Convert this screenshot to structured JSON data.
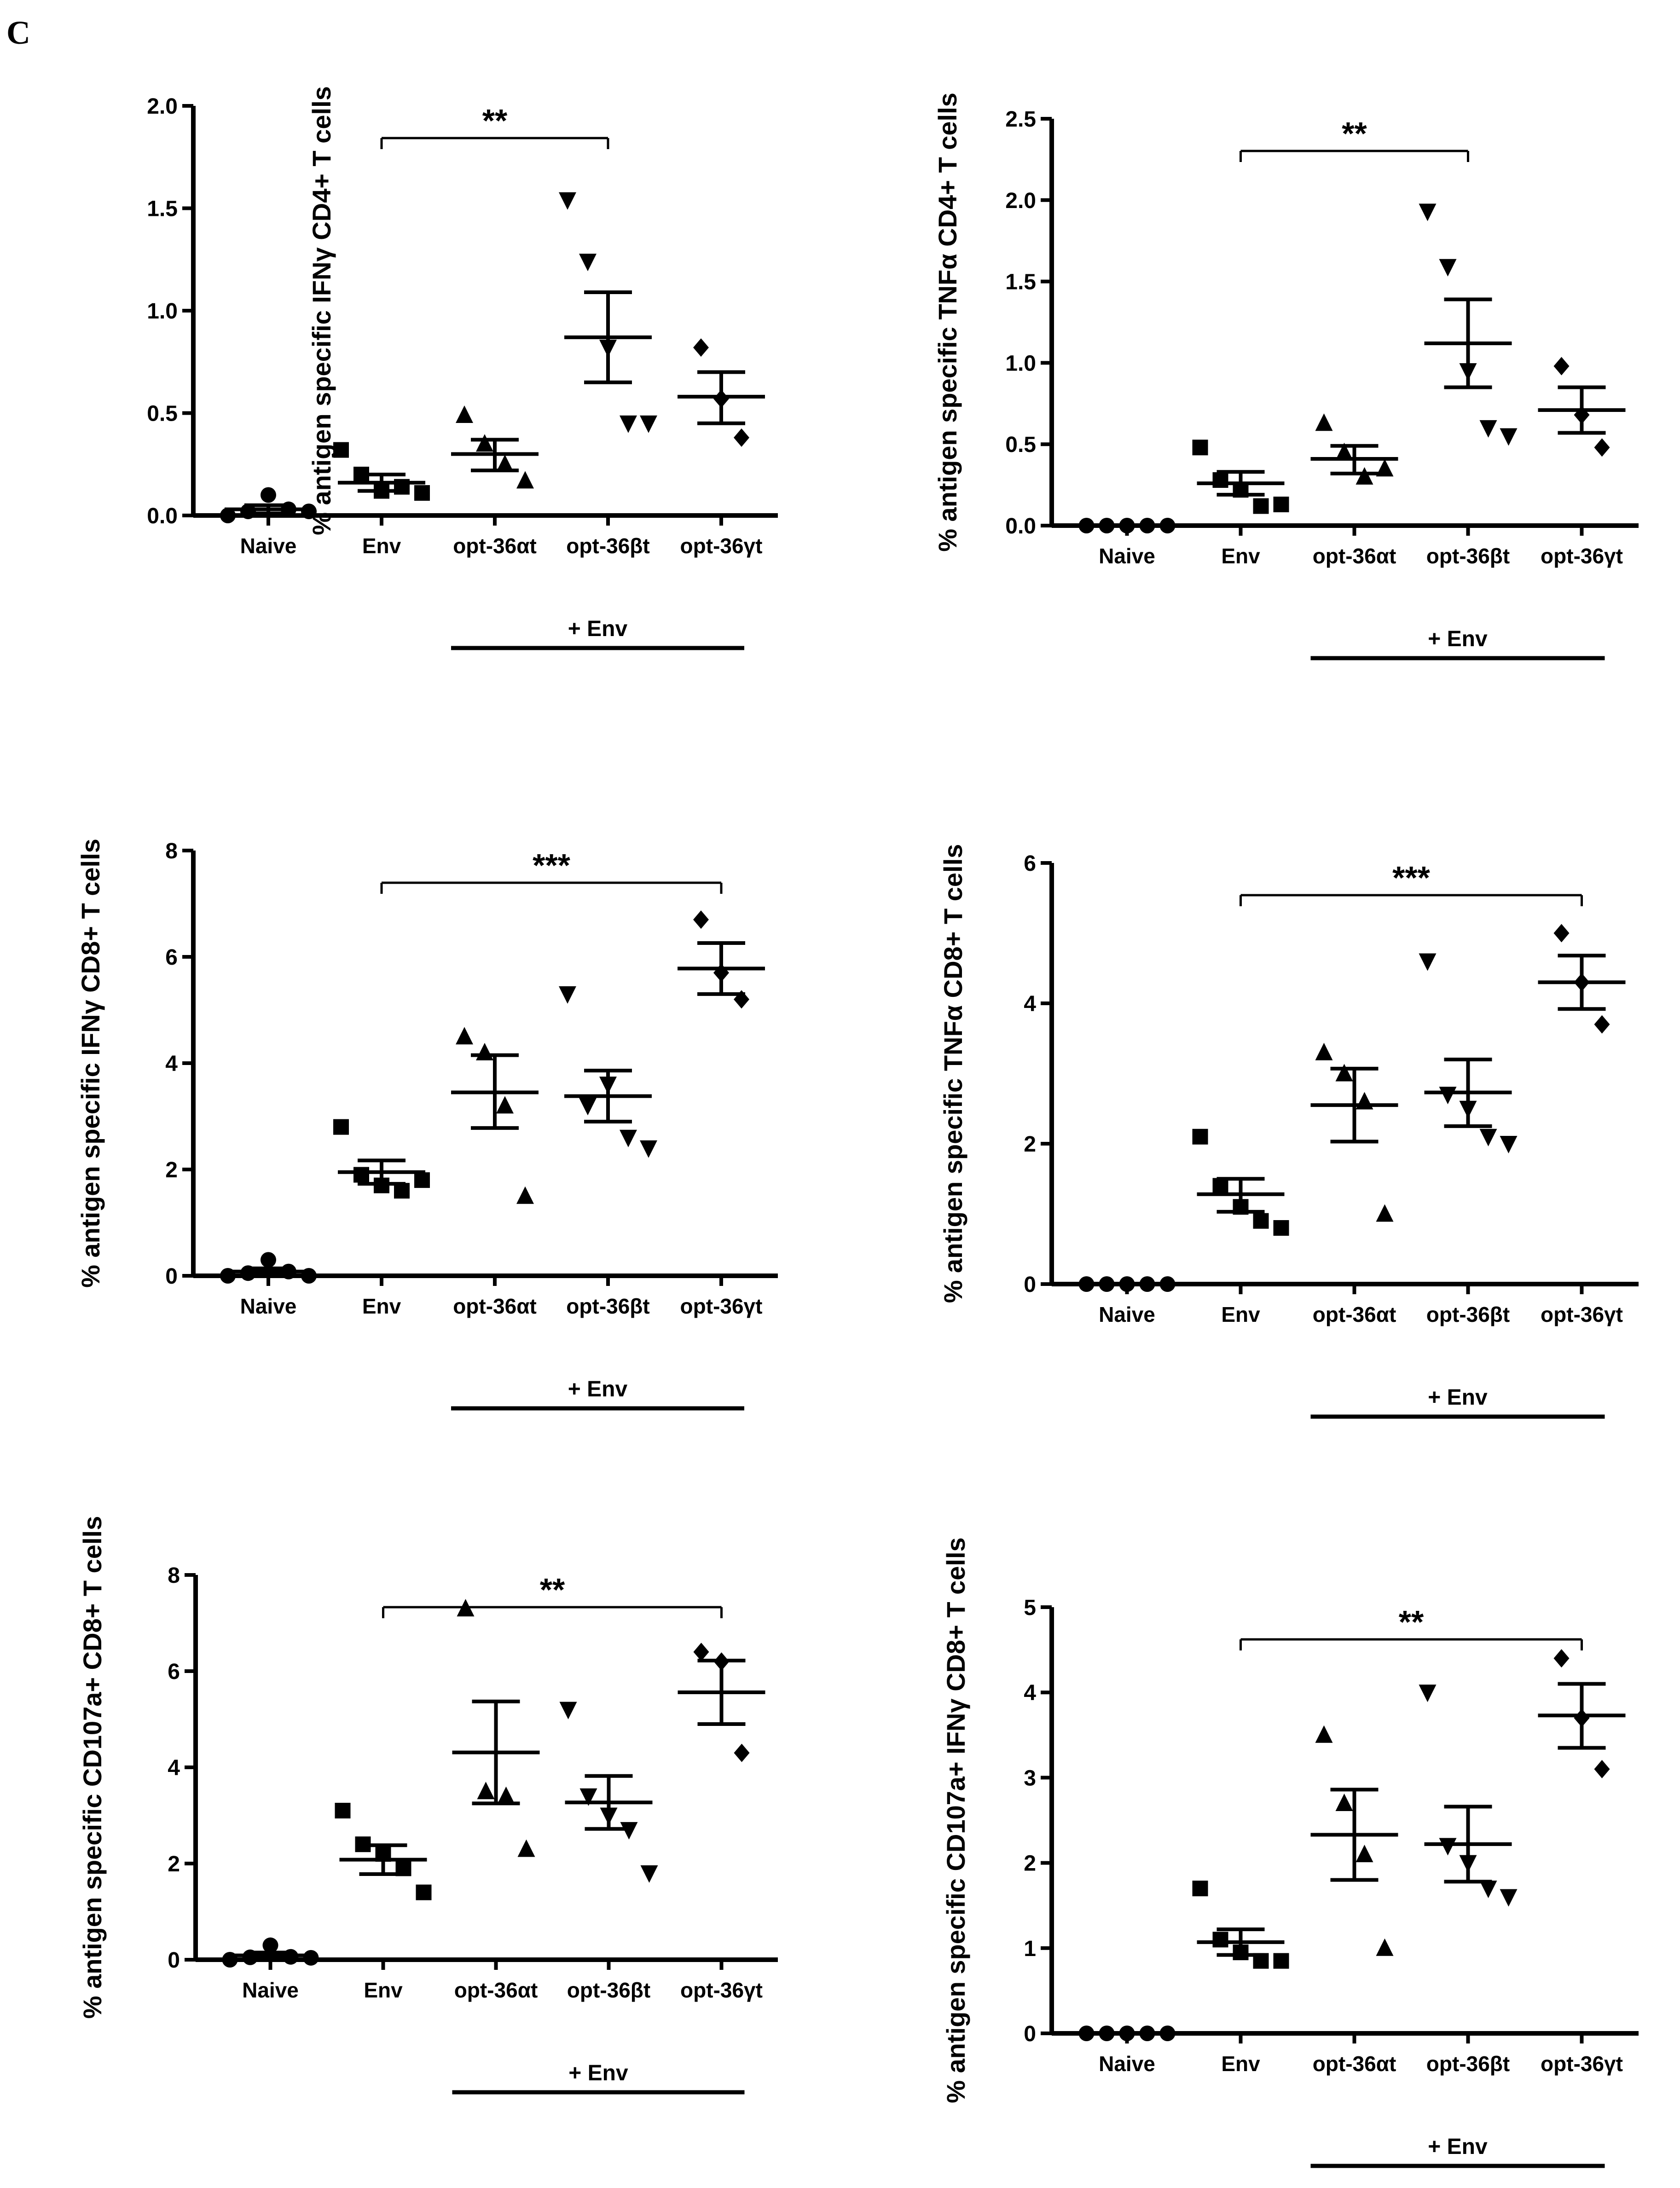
{
  "panel_label": "C",
  "colors": {
    "ink": "#000000",
    "background": "#ffffff"
  },
  "chart_data": [
    {
      "type": "scatter",
      "position": "top-left",
      "ylabel": "% antigen specific IFNγ CD4+ T cells",
      "categories": [
        "Naive",
        "Env",
        "opt-36αt",
        "opt-36βt",
        "opt-36γt"
      ],
      "ylim": [
        0,
        2.0
      ],
      "yticks": [
        "0.0",
        "0.5",
        "1.0",
        "1.5",
        "2.0"
      ],
      "markers": [
        "circle",
        "square",
        "triangle-up",
        "triangle-down",
        "diamond"
      ],
      "points": [
        [
          0.0,
          0.02,
          0.1,
          0.03,
          0.02
        ],
        [
          0.32,
          0.2,
          0.12,
          0.14,
          0.11
        ],
        [
          0.49,
          0.35,
          0.25,
          0.17
        ],
        [
          1.54,
          1.24,
          0.82,
          0.45,
          0.45
        ],
        [
          0.82,
          0.57,
          0.38
        ]
      ],
      "mean": [
        0.03,
        0.16,
        0.3,
        0.87,
        0.58
      ],
      "sem_low": [
        0.01,
        0.12,
        0.22,
        0.65,
        0.45
      ],
      "sem_high": [
        0.05,
        0.2,
        0.37,
        1.09,
        0.7
      ],
      "significance": {
        "label": "**",
        "from": "Env",
        "to": "opt-36βt"
      },
      "group_label": "+ Env"
    },
    {
      "type": "scatter",
      "position": "top-right",
      "ylabel": "% antigen specific TNFα CD4+ T cells",
      "categories": [
        "Naive",
        "Env",
        "opt-36αt",
        "opt-36βt",
        "opt-36γt"
      ],
      "ylim": [
        0,
        2.5
      ],
      "yticks": [
        "0.0",
        "0.5",
        "1.0",
        "1.5",
        "2.0",
        "2.5"
      ],
      "markers": [
        "circle",
        "square",
        "triangle-up",
        "triangle-down",
        "diamond"
      ],
      "points": [
        [
          0,
          0,
          0,
          0,
          0
        ],
        [
          0.48,
          0.28,
          0.22,
          0.12,
          0.13
        ],
        [
          0.63,
          0.45,
          0.3,
          0.35
        ],
        [
          1.93,
          1.59,
          0.95,
          0.6,
          0.55
        ],
        [
          0.98,
          0.68,
          0.48
        ]
      ],
      "mean": [
        0.0,
        0.26,
        0.41,
        1.12,
        0.71
      ],
      "sem_low": [
        0.0,
        0.19,
        0.32,
        0.85,
        0.57
      ],
      "sem_high": [
        0.0,
        0.33,
        0.49,
        1.39,
        0.85
      ],
      "significance": {
        "label": "**",
        "from": "Env",
        "to": "opt-36βt"
      },
      "group_label": "+ Env"
    },
    {
      "type": "scatter",
      "position": "middle-left",
      "ylabel": "% antigen specific IFNγ CD8+ T cells",
      "categories": [
        "Naive",
        "Env",
        "opt-36αt",
        "opt-36βt",
        "opt-36γt"
      ],
      "ylim": [
        0,
        8
      ],
      "yticks": [
        "0",
        "2",
        "4",
        "6",
        "8"
      ],
      "markers": [
        "circle",
        "square",
        "triangle-up",
        "triangle-down",
        "diamond"
      ],
      "points": [
        [
          0.0,
          0.05,
          0.3,
          0.08,
          0.0
        ],
        [
          2.8,
          1.9,
          1.7,
          1.6,
          1.8
        ],
        [
          4.5,
          4.2,
          3.2,
          1.5
        ],
        [
          5.3,
          3.2,
          3.6,
          2.6,
          2.4
        ],
        [
          6.7,
          5.7,
          5.2
        ]
      ],
      "mean": [
        0.08,
        1.95,
        3.45,
        3.38,
        5.78
      ],
      "sem_low": [
        0.02,
        1.73,
        2.78,
        2.9,
        5.3
      ],
      "sem_high": [
        0.14,
        2.17,
        4.15,
        3.86,
        6.26
      ],
      "significance": {
        "label": "***",
        "from": "Env",
        "to": "opt-36γt"
      },
      "group_label": "+ Env"
    },
    {
      "type": "scatter",
      "position": "middle-right",
      "ylabel": "% antigen specific TNFα CD8+ T cells",
      "categories": [
        "Naive",
        "Env",
        "opt-36αt",
        "opt-36βt",
        "opt-36γt"
      ],
      "ylim": [
        0,
        6
      ],
      "yticks": [
        "0",
        "2",
        "4",
        "6"
      ],
      "markers": [
        "circle",
        "square",
        "triangle-up",
        "triangle-down",
        "diamond"
      ],
      "points": [
        [
          0,
          0,
          0,
          0,
          0
        ],
        [
          2.1,
          1.4,
          1.1,
          0.9,
          0.8
        ],
        [
          3.3,
          3.0,
          2.6,
          1.0
        ],
        [
          4.6,
          2.7,
          2.5,
          2.1,
          2.0
        ],
        [
          5.0,
          4.3,
          3.7
        ]
      ],
      "mean": [
        0.0,
        1.28,
        2.55,
        2.73,
        4.3
      ],
      "sem_low": [
        0.0,
        1.03,
        2.03,
        2.25,
        3.92
      ],
      "sem_high": [
        0.0,
        1.5,
        3.07,
        3.2,
        4.68
      ],
      "significance": {
        "label": "***",
        "from": "Env",
        "to": "opt-36γt"
      },
      "group_label": "+ Env"
    },
    {
      "type": "scatter",
      "position": "bottom-left",
      "ylabel": "% antigen specific CD107a+ CD8+ T cells",
      "categories": [
        "Naive",
        "Env",
        "opt-36αt",
        "opt-36βt",
        "opt-36γt"
      ],
      "ylim": [
        0,
        8
      ],
      "yticks": [
        "0",
        "2",
        "4",
        "6",
        "8"
      ],
      "markers": [
        "circle",
        "square",
        "triangle-up",
        "triangle-down",
        "diamond"
      ],
      "points": [
        [
          0.0,
          0.05,
          0.3,
          0.06,
          0.04
        ],
        [
          3.1,
          2.4,
          2.2,
          1.9,
          1.4
        ],
        [
          7.3,
          3.5,
          3.4,
          2.3
        ],
        [
          5.2,
          3.4,
          3.0,
          2.7,
          1.8
        ],
        [
          6.4,
          6.2,
          4.3
        ]
      ],
      "mean": [
        0.09,
        2.08,
        4.31,
        3.27,
        5.56
      ],
      "sem_low": [
        0.03,
        1.78,
        3.25,
        2.72,
        4.9
      ],
      "sem_high": [
        0.15,
        2.38,
        5.37,
        3.82,
        6.22
      ],
      "significance": {
        "label": "**",
        "from": "Env",
        "to": "opt-36γt"
      },
      "group_label": "+ Env"
    },
    {
      "type": "scatter",
      "position": "bottom-right",
      "ylabel": "% antigen specific CD107a+ IFNγ CD8+ T cells",
      "categories": [
        "Naive",
        "Env",
        "opt-36αt",
        "opt-36βt",
        "opt-36γt"
      ],
      "ylim": [
        0,
        5
      ],
      "yticks": [
        "0",
        "1",
        "2",
        "3",
        "4",
        "5"
      ],
      "markers": [
        "circle",
        "square",
        "triangle-up",
        "triangle-down",
        "diamond"
      ],
      "points": [
        [
          0,
          0,
          0,
          0,
          0
        ],
        [
          1.7,
          1.1,
          0.95,
          0.85,
          0.85
        ],
        [
          3.5,
          2.7,
          2.1,
          1.0
        ],
        [
          4.0,
          2.2,
          2.0,
          1.7,
          1.6
        ],
        [
          4.4,
          3.7,
          3.1
        ]
      ],
      "mean": [
        0.0,
        1.07,
        2.33,
        2.22,
        3.73
      ],
      "sem_low": [
        0.0,
        0.92,
        1.8,
        1.78,
        3.35
      ],
      "sem_high": [
        0.0,
        1.22,
        2.86,
        2.66,
        4.1
      ],
      "significance": {
        "label": "**",
        "from": "Env",
        "to": "opt-36γt"
      },
      "group_label": "+ Env"
    }
  ]
}
